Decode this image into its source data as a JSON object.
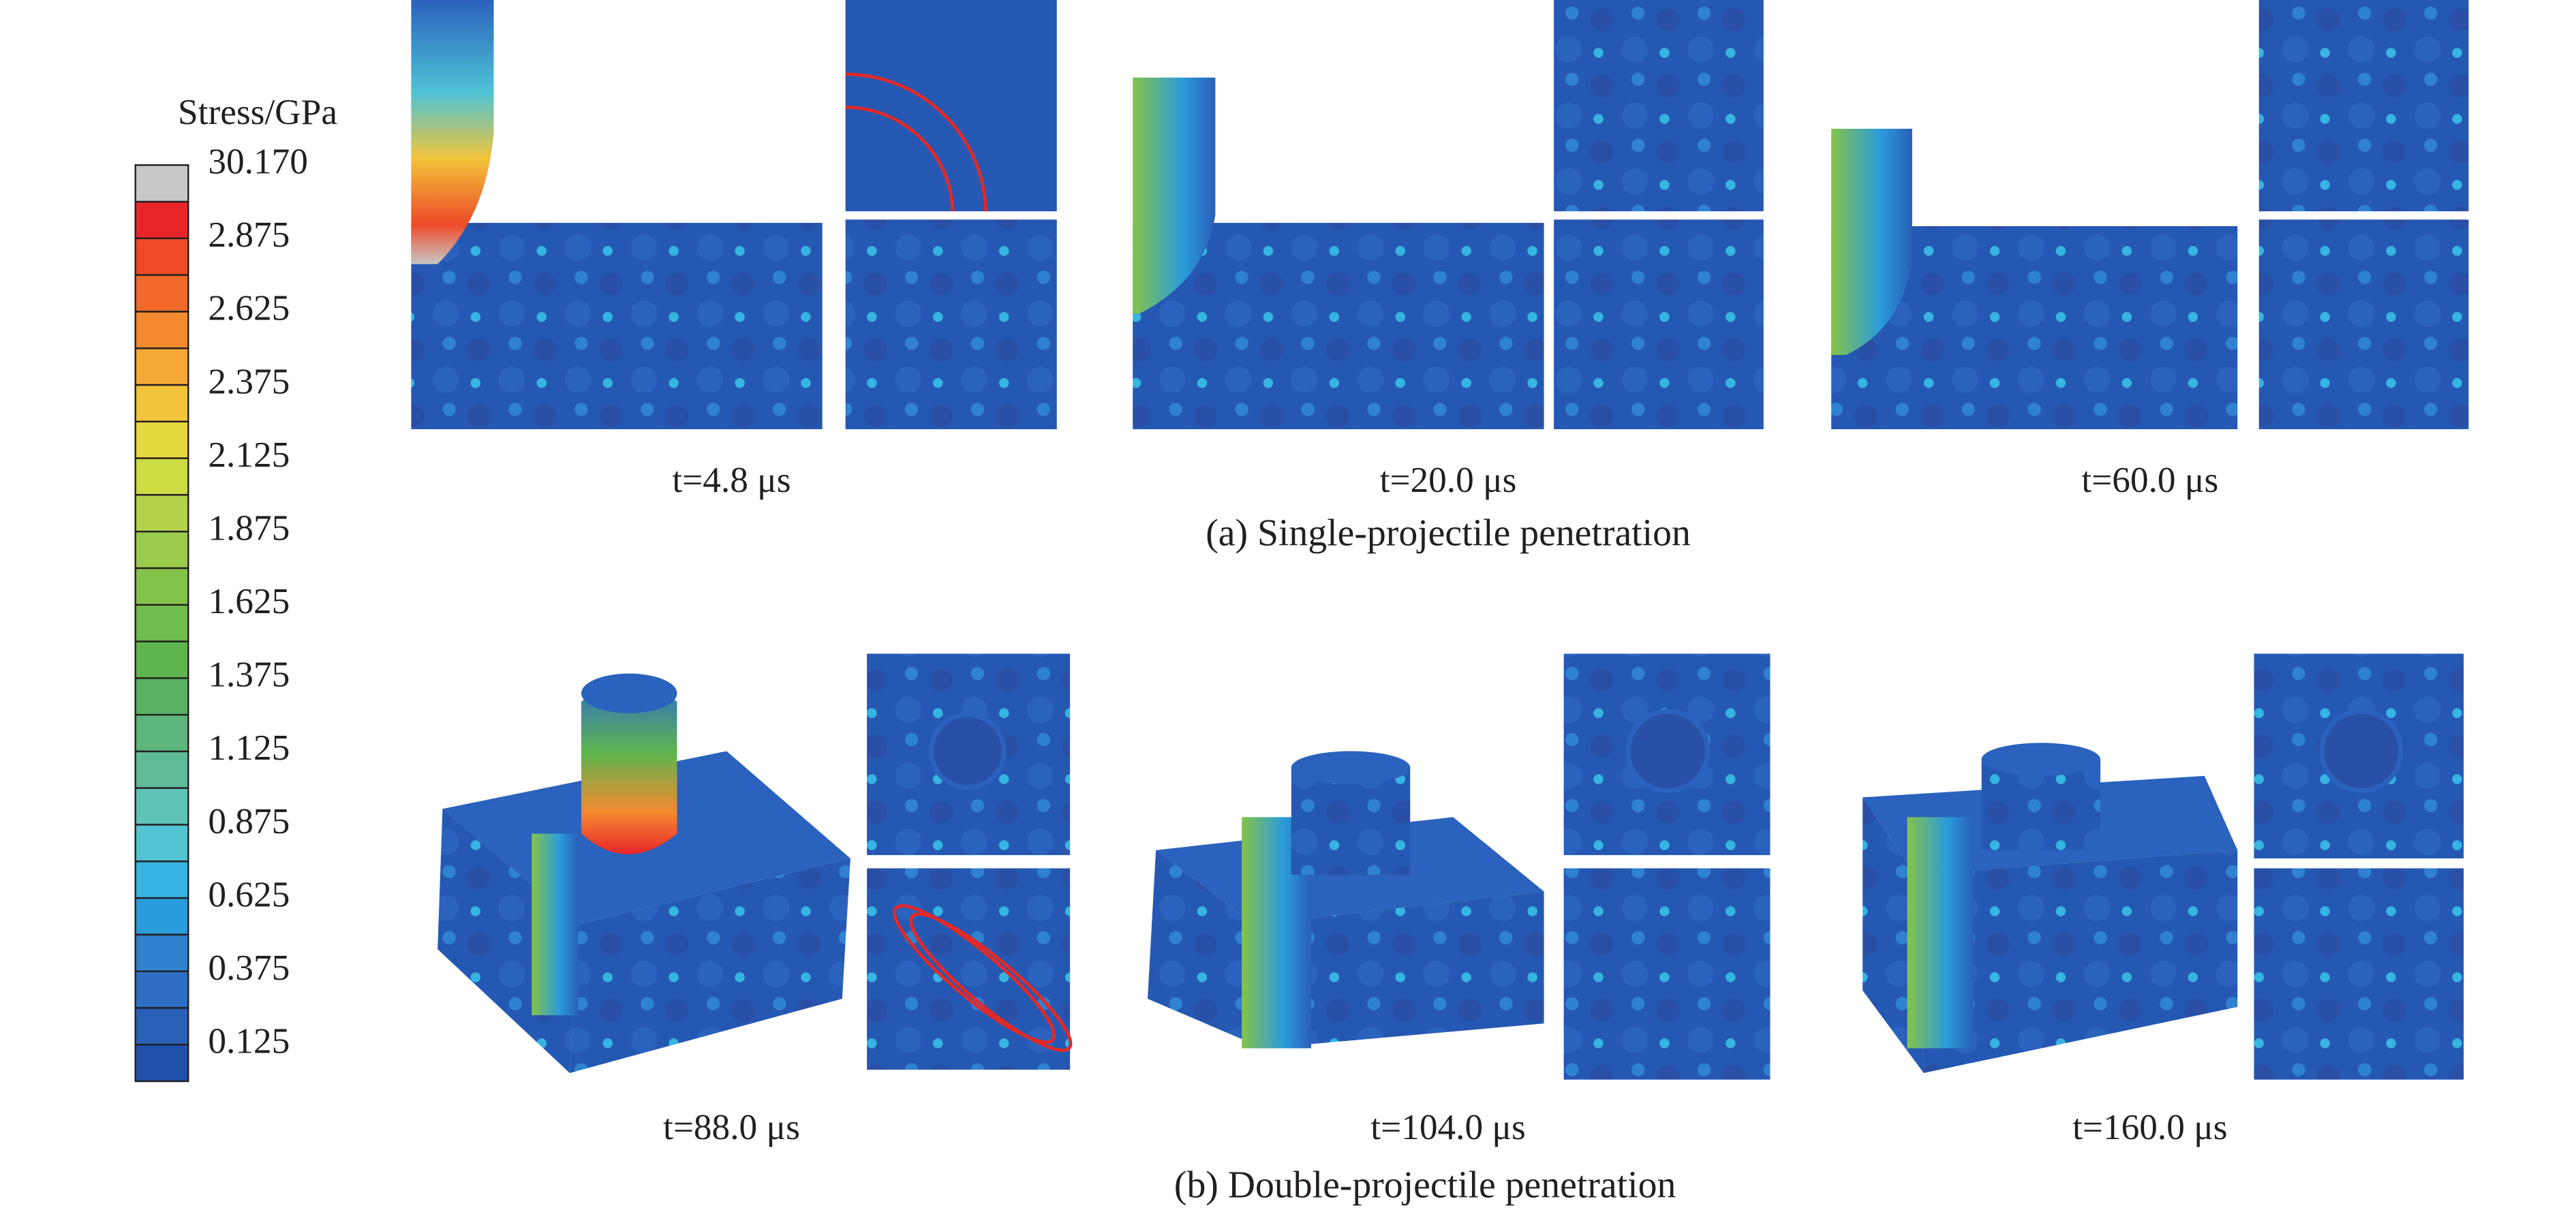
{
  "colorbar": {
    "title": "Stress/GPa",
    "labels": [
      "30.170",
      "2.875",
      "2.625",
      "2.375",
      "2.125",
      "1.875",
      "1.625",
      "1.375",
      "1.125",
      "0.875",
      "0.625",
      "0.375",
      "0.125"
    ],
    "colors": [
      "#c8c8c8",
      "#e8262a",
      "#ee4a28",
      "#f16a2c",
      "#f48a30",
      "#f5a835",
      "#f1c43a",
      "#e6d840",
      "#cddb45",
      "#b4d24a",
      "#9bcb4a",
      "#84c34a",
      "#70bc4c",
      "#5eb54e",
      "#59b262",
      "#5db67c",
      "#60bb98",
      "#5ec4b8",
      "#52c5d2",
      "#36b4e2",
      "#2a9cdb",
      "#2f82cf",
      "#2e6ec4",
      "#2a5fb8",
      "#2150ab"
    ]
  },
  "panels": {
    "single": {
      "times": [
        "t=4.8 μs",
        "t=20.0 μs",
        "t=60.0 μs"
      ],
      "caption": "(a) Single-projectile penetration"
    },
    "double": {
      "times": [
        "t=88.0 μs",
        "t=104.0 μs",
        "t=160.0 μs"
      ],
      "caption": "(b) Double-projectile penetration"
    }
  }
}
